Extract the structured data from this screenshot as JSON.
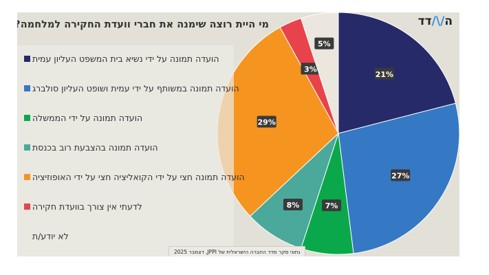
{
  "logo": {
    "text": "המדד"
  },
  "chart_data": {
    "type": "pie",
    "title": "מי היית רוצה שימנה את חברי וועדת החקירה למלחמה?",
    "start": "top",
    "direction": "clockwise",
    "slices": [
      {
        "label": "הועדה תמונה על ידי נשיא בית המשפט העליון עמית",
        "value": 21,
        "data_label": "21%",
        "color": "#262a68"
      },
      {
        "label": "הועדה תמונה במשותף על ידי עמית ושופט העליון סולברג",
        "value": 27,
        "data_label": "27%",
        "color": "#3579c4"
      },
      {
        "label": "הועדה תמונה על ידי הממשלה",
        "value": 7,
        "data_label": "7%",
        "color": "#0aa84b"
      },
      {
        "label": "הועדה תמונה בהצבעת רוב בכנסת",
        "value": 8,
        "data_label": "8%",
        "color": "#4aa99a"
      },
      {
        "label": "הועדה תמונה חצי על ידי הקואליציה חצי על ידי האופוזיציה",
        "value": 29,
        "data_label": "29%",
        "color": "#f5951f"
      },
      {
        "label": "לדעתי אין צורך בוועדת חקירה",
        "value": 3,
        "data_label": "3%",
        "color": "#e8434a"
      },
      {
        "label": "לא יודע/ת",
        "value": 5,
        "data_label": "5%",
        "color": "#ebe6de"
      }
    ],
    "legend_position": "left"
  },
  "source": "נתוני סקר מדד החברה הישראלית של JPPI, דצמבר 2025"
}
